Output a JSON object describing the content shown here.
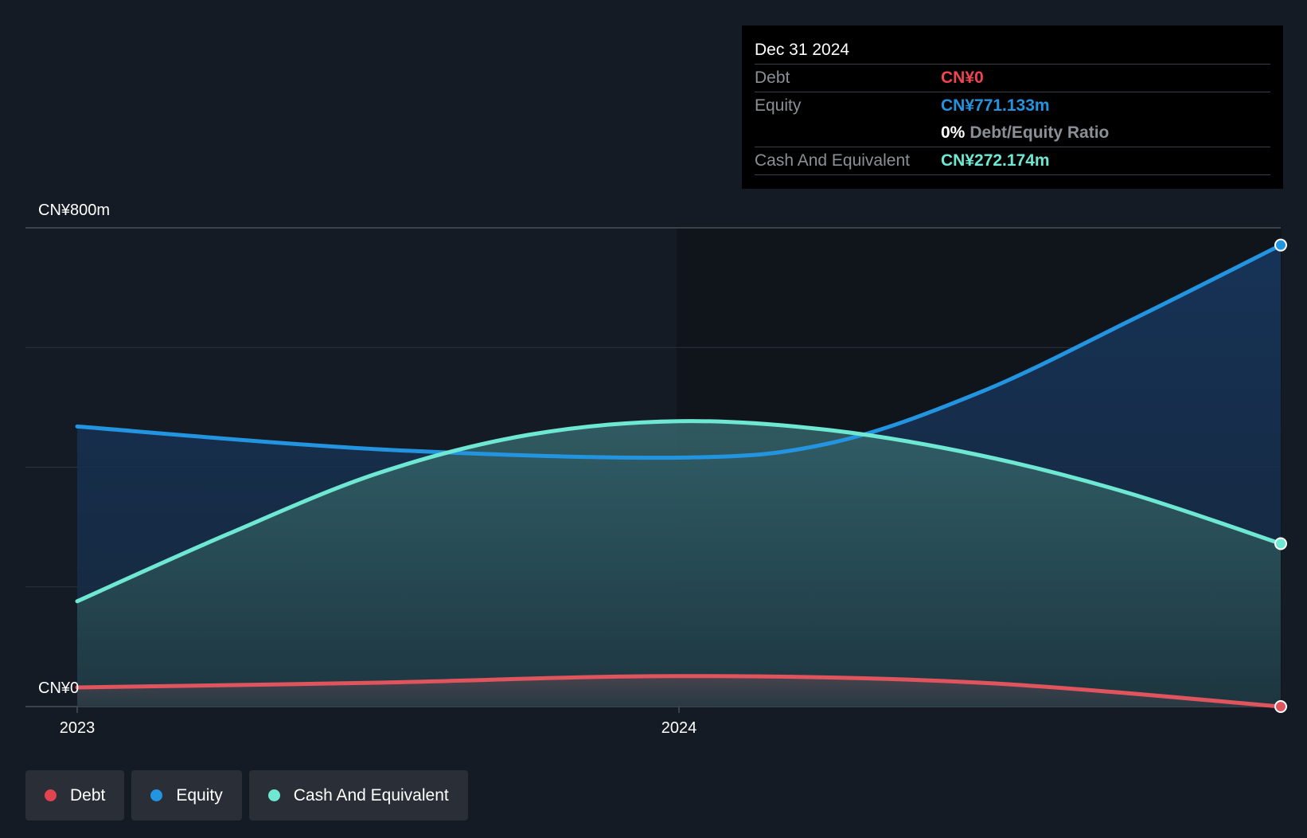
{
  "chart_data": {
    "type": "area",
    "y_axis": {
      "min": 0,
      "max": 800,
      "top_label": "CN¥800m",
      "bottom_label": "CN¥0"
    },
    "x_axis": {
      "ticks": [
        "2023",
        "2024"
      ],
      "tick_values": [
        2023.0,
        2024.0
      ]
    },
    "grid": true,
    "legend_position": "bottom-left",
    "series": [
      {
        "name": "Equity",
        "color": "#2394e0",
        "x": [
          2023.0,
          2023.5,
          2024.0,
          2024.25,
          2024.5,
          2024.75,
          2025.0
        ],
        "values": [
          468,
          430,
          416,
          440,
          525,
          645,
          771.133
        ]
      },
      {
        "name": "Cash And Equivalent",
        "color": "#6ee8d2",
        "x": [
          2023.0,
          2023.25,
          2023.5,
          2023.75,
          2024.0,
          2024.25,
          2024.5,
          2024.75,
          2025.0
        ],
        "values": [
          176,
          288,
          390,
          454,
          477,
          462,
          420,
          356,
          272.174
        ]
      },
      {
        "name": "Debt",
        "color": "#e0545e",
        "x": [
          2023.0,
          2023.5,
          2024.0,
          2024.5,
          2025.0
        ],
        "values": [
          32,
          40,
          51,
          40,
          0
        ]
      }
    ]
  },
  "tooltip": {
    "date": "Dec 31 2024",
    "debt_label": "Debt",
    "debt_value": "CN¥0",
    "equity_label": "Equity",
    "equity_value": "CN¥771.133m",
    "ratio_pct": "0%",
    "ratio_label": "Debt/Equity Ratio",
    "cash_label": "Cash And Equivalent",
    "cash_value": "CN¥272.174m",
    "colors": {
      "debt": "#f0454f",
      "equity": "#2394e0",
      "cash": "#6ee8d2"
    }
  },
  "legend": [
    {
      "label": "Debt",
      "color": "#e0454f"
    },
    {
      "label": "Equity",
      "color": "#2394e0"
    },
    {
      "label": "Cash And Equivalent",
      "color": "#6ee8d2"
    }
  ]
}
